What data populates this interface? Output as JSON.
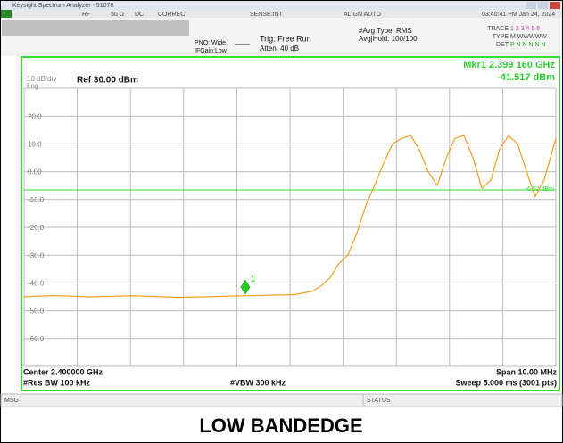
{
  "screen": {
    "window_title": "Keysight Spectrum Analyzer - 51078",
    "status": [
      "RF",
      "50 Ω",
      "DC",
      "CORREC",
      "SENSE:INT",
      "ALIGN AUTO",
      "03:40:41 PM Jan 24, 2024"
    ],
    "settings": [
      "PNO: Wide",
      "IFGain:Low",
      "Trig: Free Run",
      "Atten: 40 dB",
      "#Avg Type: RMS",
      "Avg|Hold: 100/100"
    ],
    "trace": [
      "TRACE",
      "1 2 3 4 5 6",
      "TYPE",
      "M WWWWW",
      "DET",
      "P N N N N N"
    ],
    "scale": "10 dB/div",
    "scale_type": "Log",
    "ref_level": "Ref 30.00 dBm",
    "marker_readout": [
      "Mkr1 2.399 160 GHz",
      "-41.517 dBm"
    ],
    "footer": [
      "Center 2.400000 GHz",
      "#Res BW 100 kHz",
      "#VBW 300 kHz",
      "Span 10.00 MHz",
      "Sweep  5.000 ms (3001 pts)"
    ],
    "message_bar": [
      "MSG",
      "STATUS"
    ]
  },
  "chart_data": {
    "type": "line",
    "x": [
      2.395,
      2.39555,
      2.39622,
      2.39706,
      2.3979,
      2.39874,
      2.39941,
      2.40008,
      2.40042,
      2.40059,
      2.40076,
      2.40092,
      2.40109,
      2.40126,
      2.40143,
      2.40159,
      2.40176,
      2.40193,
      2.4021,
      2.40227,
      2.40243,
      2.4026,
      2.40277,
      2.40294,
      2.4031,
      2.40327,
      2.40344,
      2.40361,
      2.40378,
      2.40394,
      2.40411,
      2.40428,
      2.40445,
      2.40461,
      2.40478,
      2.405
    ],
    "series": [
      {
        "color": "#f0a020",
        "values": [
          -45,
          -44.5,
          -45,
          -44.6,
          -45.2,
          -44.8,
          -44.5,
          -44.2,
          -43,
          -41,
          -38,
          -33,
          -30,
          -22,
          -12,
          -5,
          3,
          10,
          12,
          13,
          8,
          0,
          -5,
          5,
          12,
          13,
          5,
          -6,
          -3,
          8,
          13,
          10,
          0,
          -9,
          -3,
          12
        ]
      }
    ],
    "xlim": [
      2.395,
      2.405
    ],
    "xgrid_divisions": 10,
    "ylim": [
      -70,
      30
    ],
    "yticks": [
      {
        "value": 20,
        "label": "20.0"
      },
      {
        "value": 10,
        "label": "10.0"
      },
      {
        "value": 0,
        "label": "0.00"
      },
      {
        "value": -10,
        "label": "-10.0"
      },
      {
        "value": -20,
        "label": "-20.0"
      },
      {
        "value": -30,
        "label": "-30.0"
      },
      {
        "value": -40,
        "label": "-40.0"
      },
      {
        "value": -50,
        "label": "-50.0"
      },
      {
        "value": -60,
        "label": "-60.0"
      }
    ],
    "grid": true,
    "display_line": {
      "value": -6.52,
      "label": "-6.52 dBm",
      "color": "#33dd33"
    },
    "marker": {
      "label": "1",
      "x": 2.39916,
      "value": -41.517,
      "color": "#22cc22"
    }
  },
  "caption": "LOW BANDEDGE"
}
